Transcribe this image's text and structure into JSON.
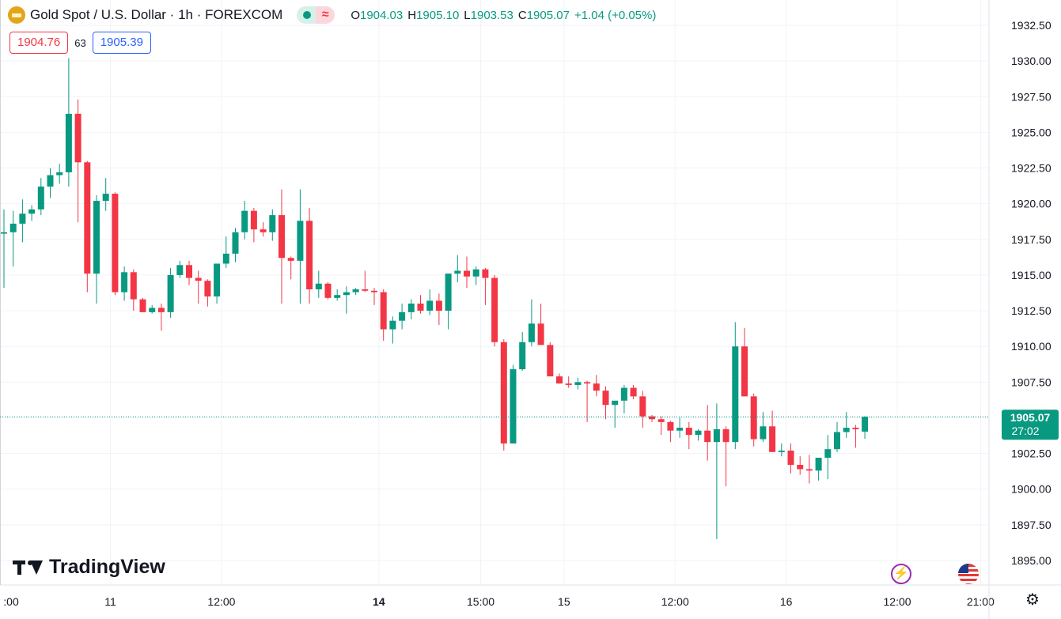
{
  "header": {
    "title": "Gold Spot / U.S. Dollar · 1h · FOREXCOM",
    "market_state_icon": "market-open-dot-icon",
    "wave_icon": "wave-icon",
    "wave_glyph": "≈",
    "ohlc": {
      "o_label": "O",
      "o": "1904.03",
      "h_label": "H",
      "h": "1905.10",
      "l_label": "L",
      "l": "1903.53",
      "c_label": "C",
      "c": "1905.07",
      "change": "+1.04 (+0.05%)"
    }
  },
  "quote": {
    "bid": "1904.76",
    "spread": "63",
    "ask": "1905.39"
  },
  "logo": {
    "text": "TradingView"
  },
  "events": {
    "flash_glyph": "⚡"
  },
  "settings_glyph": "⚙",
  "colors": {
    "up": "#089981",
    "down": "#f23645",
    "grid": "#f0f3fa",
    "text": "#131722",
    "price_line": "#089981"
  },
  "chart_data": {
    "type": "candlestick",
    "y_axis": {
      "min": 1895.0,
      "max": 1932.5,
      "ticks": [
        "1895.00",
        "1897.50",
        "1900.00",
        "1902.50",
        "1905.00",
        "1907.50",
        "1910.00",
        "1912.50",
        "1915.00",
        "1917.50",
        "1920.00",
        "1922.50",
        "1925.00",
        "1927.50",
        "1930.00",
        "1932.50"
      ]
    },
    "x_ticks": [
      {
        "label": ":00",
        "bar": -0.5,
        "bold": false
      },
      {
        "label": "11",
        "bar": 11.5,
        "bold": false
      },
      {
        "label": "12:00",
        "bar": 23.5,
        "bold": false
      },
      {
        "label": "14",
        "bar": 40.5,
        "bold": true
      },
      {
        "label": "15:00",
        "bar": 51.5,
        "bold": false
      },
      {
        "label": "15",
        "bar": 60.5,
        "bold": false
      },
      {
        "label": "12:00",
        "bar": 72.5,
        "bold": false
      },
      {
        "label": "16",
        "bar": 84.5,
        "bold": false
      },
      {
        "label": "12:00",
        "bar": 96.5,
        "bold": false
      },
      {
        "label": "21:00",
        "bar": 105.5,
        "bold": false
      }
    ],
    "last_price": {
      "value": "1905.07",
      "countdown": "27:02"
    },
    "candles": [
      [
        1917.9,
        1919.6,
        1914.1,
        1918.0
      ],
      [
        1918.0,
        1919.5,
        1915.6,
        1918.6
      ],
      [
        1918.6,
        1920.3,
        1917.3,
        1919.3
      ],
      [
        1919.3,
        1919.9,
        1918.8,
        1919.6
      ],
      [
        1919.6,
        1921.8,
        1919.2,
        1921.2
      ],
      [
        1921.2,
        1922.5,
        1920.4,
        1922.0
      ],
      [
        1922.0,
        1922.8,
        1921.4,
        1922.2
      ],
      [
        1922.2,
        1930.2,
        1921.2,
        1926.3
      ],
      [
        1926.3,
        1927.3,
        1918.7,
        1922.9
      ],
      [
        1922.9,
        1923.0,
        1913.8,
        1915.1
      ],
      [
        1915.1,
        1920.6,
        1913.0,
        1920.2
      ],
      [
        1920.2,
        1921.8,
        1919.5,
        1920.7
      ],
      [
        1920.7,
        1920.8,
        1913.6,
        1913.8
      ],
      [
        1913.8,
        1915.6,
        1913.2,
        1915.2
      ],
      [
        1915.2,
        1915.4,
        1912.5,
        1913.3
      ],
      [
        1913.3,
        1913.4,
        1912.4,
        1912.4
      ],
      [
        1912.4,
        1912.9,
        1912.3,
        1912.7
      ],
      [
        1912.7,
        1913.0,
        1911.1,
        1912.4
      ],
      [
        1912.4,
        1915.5,
        1912.0,
        1915.0
      ],
      [
        1915.0,
        1916.0,
        1914.8,
        1915.7
      ],
      [
        1915.7,
        1916.0,
        1914.3,
        1914.8
      ],
      [
        1914.8,
        1915.3,
        1913.0,
        1914.6
      ],
      [
        1914.6,
        1914.7,
        1912.8,
        1913.5
      ],
      [
        1913.5,
        1915.8,
        1913.0,
        1915.8
      ],
      [
        1915.8,
        1917.7,
        1915.5,
        1916.5
      ],
      [
        1916.5,
        1918.3,
        1915.9,
        1918.0
      ],
      [
        1918.0,
        1920.2,
        1917.5,
        1919.5
      ],
      [
        1919.5,
        1919.7,
        1917.3,
        1918.2
      ],
      [
        1918.2,
        1918.7,
        1917.7,
        1918.0
      ],
      [
        1918.0,
        1919.6,
        1917.4,
        1919.2
      ],
      [
        1919.2,
        1921.0,
        1913.0,
        1916.2
      ],
      [
        1916.2,
        1916.3,
        1914.7,
        1916.0
      ],
      [
        1916.0,
        1921.0,
        1913.0,
        1918.8
      ],
      [
        1918.8,
        1919.7,
        1913.0,
        1914.0
      ],
      [
        1914.0,
        1915.3,
        1913.4,
        1914.4
      ],
      [
        1914.4,
        1914.5,
        1913.3,
        1913.4
      ],
      [
        1913.4,
        1914.0,
        1913.2,
        1913.6
      ],
      [
        1913.6,
        1914.2,
        1912.3,
        1913.8
      ],
      [
        1913.8,
        1914.1,
        1913.6,
        1914.0
      ],
      [
        1914.0,
        1915.3,
        1913.8,
        1913.9
      ],
      [
        1913.9,
        1914.1,
        1912.9,
        1913.8
      ],
      [
        1913.8,
        1914.0,
        1910.4,
        1911.2
      ],
      [
        1911.2,
        1912.1,
        1910.2,
        1911.8
      ],
      [
        1911.8,
        1913.0,
        1911.2,
        1912.4
      ],
      [
        1912.4,
        1913.3,
        1911.9,
        1913.0
      ],
      [
        1913.0,
        1913.6,
        1912.3,
        1912.5
      ],
      [
        1912.5,
        1914.0,
        1912.2,
        1913.2
      ],
      [
        1913.2,
        1913.7,
        1911.5,
        1912.5
      ],
      [
        1912.5,
        1915.1,
        1911.2,
        1915.1
      ],
      [
        1915.1,
        1916.4,
        1914.5,
        1915.3
      ],
      [
        1915.3,
        1916.3,
        1914.1,
        1914.9
      ],
      [
        1914.9,
        1915.6,
        1914.3,
        1915.4
      ],
      [
        1915.4,
        1915.5,
        1912.9,
        1914.8
      ],
      [
        1914.8,
        1915.0,
        1910.0,
        1910.3
      ],
      [
        1910.3,
        1910.5,
        1902.7,
        1903.2
      ],
      [
        1903.2,
        1908.7,
        1903.3,
        1908.4
      ],
      [
        1908.4,
        1911.0,
        1908.3,
        1910.3
      ],
      [
        1910.3,
        1913.3,
        1910.0,
        1911.6
      ],
      [
        1911.6,
        1913.0,
        1910.1,
        1910.1
      ],
      [
        1910.1,
        1910.3,
        1907.9,
        1907.9
      ],
      [
        1907.9,
        1908.1,
        1907.4,
        1907.4
      ],
      [
        1907.4,
        1907.9,
        1907.1,
        1907.3
      ],
      [
        1907.3,
        1907.8,
        1907.0,
        1907.5
      ],
      [
        1907.5,
        1907.6,
        1904.7,
        1907.4
      ],
      [
        1907.4,
        1908.0,
        1906.5,
        1906.9
      ],
      [
        1906.9,
        1907.2,
        1904.9,
        1905.9
      ],
      [
        1905.9,
        1906.1,
        1904.3,
        1906.2
      ],
      [
        1906.2,
        1907.3,
        1905.3,
        1907.1
      ],
      [
        1907.1,
        1907.3,
        1906.3,
        1906.5
      ],
      [
        1906.5,
        1906.9,
        1904.3,
        1905.1
      ],
      [
        1905.1,
        1905.2,
        1904.7,
        1904.9
      ],
      [
        1904.9,
        1905.1,
        1903.8,
        1904.7
      ],
      [
        1904.7,
        1904.8,
        1903.3,
        1904.1
      ],
      [
        1904.1,
        1905.0,
        1903.6,
        1904.3
      ],
      [
        1904.3,
        1904.7,
        1902.8,
        1903.8
      ],
      [
        1903.8,
        1904.2,
        1903.4,
        1904.1
      ],
      [
        1904.1,
        1905.9,
        1902.0,
        1903.3
      ],
      [
        1903.3,
        1906.0,
        1896.5,
        1904.2
      ],
      [
        1904.2,
        1904.4,
        1900.2,
        1903.3
      ],
      [
        1903.3,
        1911.7,
        1902.8,
        1910.0
      ],
      [
        1910.0,
        1911.3,
        1906.5,
        1906.5
      ],
      [
        1906.5,
        1906.7,
        1903.0,
        1903.5
      ],
      [
        1903.5,
        1905.4,
        1903.3,
        1904.4
      ],
      [
        1904.4,
        1905.5,
        1902.6,
        1902.6
      ],
      [
        1902.6,
        1903.2,
        1902.3,
        1902.7
      ],
      [
        1902.7,
        1903.2,
        1901.1,
        1901.7
      ],
      [
        1901.7,
        1902.3,
        1901.0,
        1901.4
      ],
      [
        1901.4,
        1902.4,
        1900.4,
        1901.3
      ],
      [
        1901.3,
        1902.1,
        1900.6,
        1902.2
      ],
      [
        1902.2,
        1903.8,
        1900.7,
        1902.8
      ],
      [
        1902.8,
        1904.7,
        1902.6,
        1904.0
      ],
      [
        1904.0,
        1905.4,
        1903.6,
        1904.3
      ],
      [
        1904.3,
        1904.5,
        1902.9,
        1904.2
      ],
      [
        1904.03,
        1905.1,
        1903.53,
        1905.07
      ]
    ],
    "first_bar_x": 5,
    "bar_spacing": 11.7
  }
}
